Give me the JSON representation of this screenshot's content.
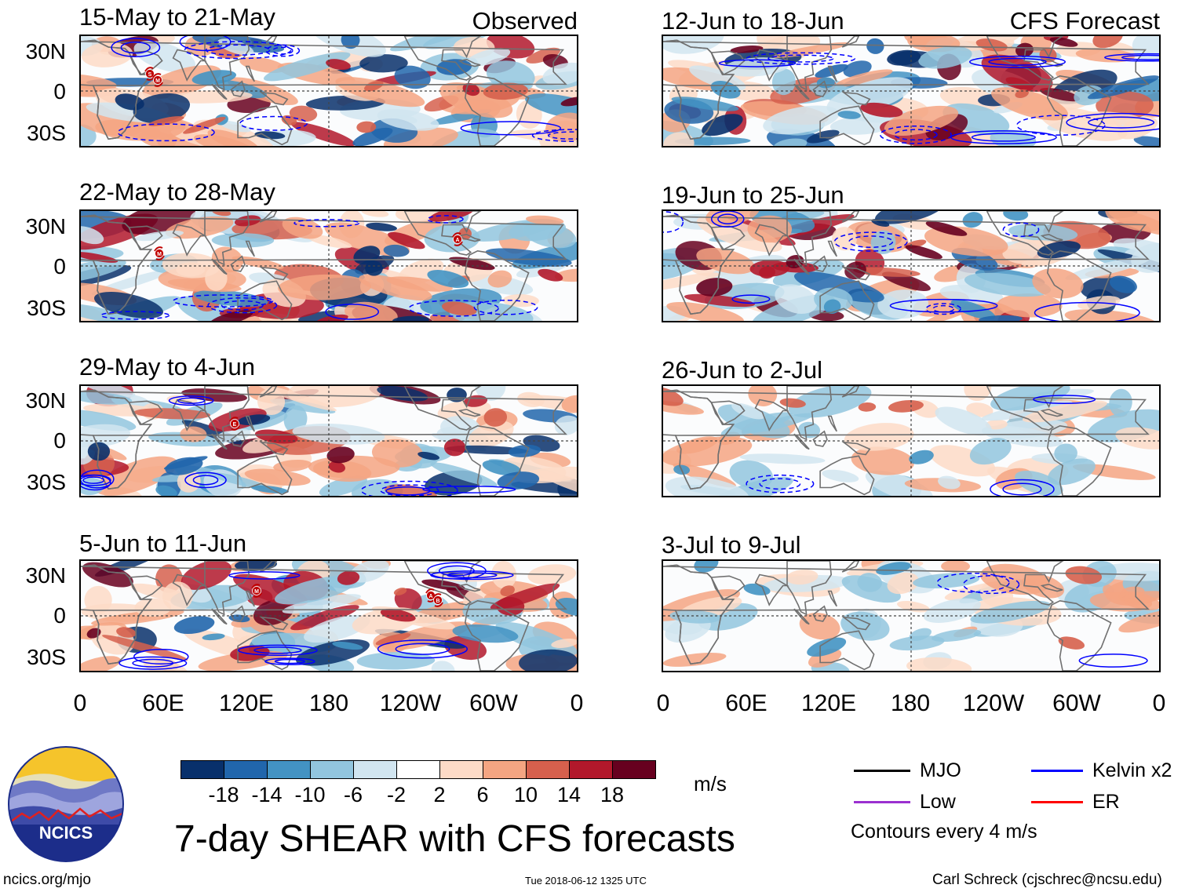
{
  "colors": {
    "dark_blue": "#08306b",
    "mid_blue": "#2166ac",
    "blue": "#4393c3",
    "light_blue": "#92c5de",
    "pale_blue": "#d1e5f0",
    "white": "#ffffff",
    "pale_red": "#fddbc7",
    "light_red": "#f4a582",
    "red": "#d6604d",
    "dark_red": "#b2182b",
    "darkest_red": "#67001f",
    "kelvin": "#0000ff",
    "mjo": "#000000",
    "low": "#9b30d0",
    "er": "#ff0000",
    "land": "#707070"
  },
  "header": {
    "observed_label": "Observed",
    "forecast_label": "CFS Forecast"
  },
  "axes": {
    "y_ticks": [
      "30N",
      "0",
      "30S"
    ],
    "x_ticks": [
      "0",
      "60E",
      "120E",
      "180",
      "120W",
      "60W",
      "0"
    ]
  },
  "panels": {
    "observed": [
      {
        "title": "15-May to 21-May",
        "storms": [
          "S",
          "M"
        ]
      },
      {
        "title": "22-May to 28-May",
        "storms": [
          "M",
          "A"
        ]
      },
      {
        "title": "29-May to 4-Jun",
        "storms": [
          "E"
        ]
      },
      {
        "title": "5-Jun to 11-Jun",
        "storms": [
          "M",
          "A",
          "B"
        ]
      }
    ],
    "forecast": [
      {
        "title": "12-Jun to 18-Jun"
      },
      {
        "title": "19-Jun to 25-Jun"
      },
      {
        "title": "26-Jun to 2-Jul"
      },
      {
        "title": "3-Jul to 9-Jul"
      }
    ]
  },
  "colorbar": {
    "labels": [
      "-18",
      "-14",
      "-10",
      "-6",
      "-2",
      "2",
      "6",
      "10",
      "14",
      "18"
    ],
    "colors": [
      "#08306b",
      "#2166ac",
      "#4393c3",
      "#92c5de",
      "#d1e5f0",
      "#ffffff",
      "#fddbc7",
      "#f4a582",
      "#d6604d",
      "#b2182b",
      "#67001f"
    ],
    "units": "m/s"
  },
  "legend": {
    "mjo": "MJO",
    "low": "Low",
    "kelvin": "Kelvin x2",
    "er": "ER",
    "contours": "Contours every 4 m/s"
  },
  "footer": {
    "logo_text": "NCICS",
    "title": "7-day SHEAR with CFS forecasts",
    "url": "ncics.org/mjo",
    "timestamp": "Tue 2018-06-12 1325 UTC",
    "author": "Carl Schreck (cjschrec@ncsu.edu)"
  }
}
